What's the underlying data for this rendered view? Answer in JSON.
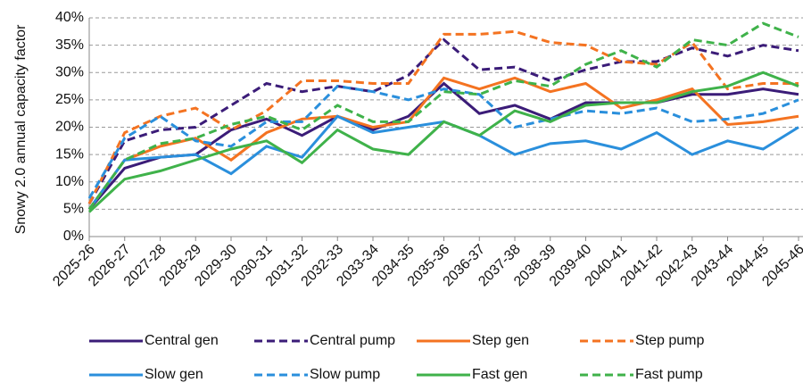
{
  "chart_data": {
    "type": "line",
    "y_label": "Snowy 2.0 annual capacity factor",
    "categories": [
      "2025-26",
      "2026-27",
      "2027-28",
      "2028-29",
      "2029-30",
      "2030-31",
      "2031-32",
      "2032-33",
      "2033-34",
      "2034-35",
      "2035-36",
      "2036-37",
      "2037-38",
      "2038-39",
      "2039-40",
      "2040-41",
      "2041-42",
      "2042-43",
      "2043-44",
      "2044-45",
      "2045-46"
    ],
    "ylim": [
      0,
      40
    ],
    "yticks": [
      {
        "value": 0,
        "label": "0%"
      },
      {
        "value": 5,
        "label": "5%"
      },
      {
        "value": 10,
        "label": "10%"
      },
      {
        "value": 15,
        "label": "15%"
      },
      {
        "value": 20,
        "label": "20%"
      },
      {
        "value": 25,
        "label": "25%"
      },
      {
        "value": 30,
        "label": "30%"
      },
      {
        "value": 35,
        "label": "35%"
      },
      {
        "value": 40,
        "label": "40%"
      }
    ],
    "grid": true,
    "series": [
      {
        "name": "Central gen",
        "color": "#3b1c78",
        "dashed": false,
        "values": [
          5,
          12.5,
          14.5,
          15,
          19.5,
          21.5,
          18.5,
          22,
          19.5,
          22,
          28,
          22.5,
          24,
          21.5,
          24.5,
          24.5,
          24.5,
          26,
          26,
          27,
          26
        ]
      },
      {
        "name": "Central pump",
        "color": "#3b1c78",
        "dashed": true,
        "values": [
          6,
          17.5,
          19.5,
          20,
          24,
          28,
          26.5,
          27.5,
          26.5,
          29.5,
          36,
          30.5,
          31,
          28.5,
          30.5,
          32,
          32,
          34.5,
          33,
          35,
          34
        ]
      },
      {
        "name": "Step gen",
        "color": "#f47321",
        "dashed": false,
        "values": [
          5,
          14,
          16.5,
          18,
          14,
          19,
          21.5,
          22,
          20,
          21,
          29,
          27,
          29,
          26.5,
          28,
          23.5,
          25,
          27,
          20.5,
          21,
          22
        ]
      },
      {
        "name": "Step pump",
        "color": "#f47321",
        "dashed": true,
        "values": [
          6,
          19,
          22,
          23.5,
          19.5,
          23,
          28.5,
          28.5,
          28,
          28,
          37,
          37,
          37.5,
          35.5,
          35,
          32,
          31.5,
          35.5,
          27,
          28,
          28
        ]
      },
      {
        "name": "Slow gen",
        "color": "#2a8fdc",
        "dashed": false,
        "values": [
          5,
          14,
          14.5,
          15,
          11.5,
          16.5,
          14.5,
          22,
          19,
          20,
          21,
          18.5,
          15,
          17,
          17.5,
          16,
          19,
          15,
          17.5,
          16,
          20
        ]
      },
      {
        "name": "Slow pump",
        "color": "#2a8fdc",
        "dashed": true,
        "values": [
          7,
          18,
          22,
          17.5,
          16.5,
          21,
          21,
          27.5,
          26.5,
          25,
          27,
          26,
          20,
          21.5,
          23,
          22.5,
          23.5,
          21,
          21.5,
          22.5,
          25
        ]
      },
      {
        "name": "Fast gen",
        "color": "#3fb24a",
        "dashed": false,
        "values": [
          4.5,
          10.5,
          12,
          14,
          16,
          17.5,
          13.5,
          19.5,
          16,
          15,
          21,
          18.5,
          23,
          21,
          24,
          24.5,
          24.5,
          26.5,
          27.5,
          30,
          27.5
        ]
      },
      {
        "name": "Fast pump",
        "color": "#3fb24a",
        "dashed": true,
        "values": [
          5,
          14,
          17,
          18,
          20.5,
          22,
          19.5,
          24,
          21,
          21,
          26.5,
          26,
          28.5,
          27.5,
          31.5,
          34,
          31,
          36,
          35,
          39,
          36.5
        ]
      }
    ]
  }
}
